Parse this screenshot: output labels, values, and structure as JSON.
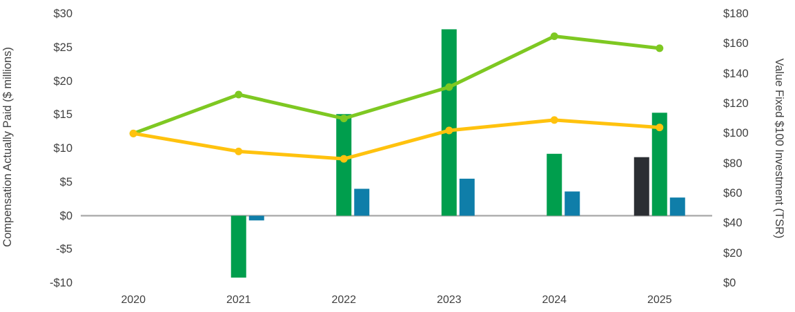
{
  "chart_data": {
    "type": "combo-bar-line",
    "title": "",
    "categories": [
      "2020",
      "2021",
      "2022",
      "2023",
      "2024",
      "2025"
    ],
    "left_axis": {
      "title": "Compensation Actually Paid ($ millions)",
      "range": [
        -10,
        30
      ],
      "ticks": [
        {
          "label": "$30",
          "value": 30
        },
        {
          "label": "$25",
          "value": 25
        },
        {
          "label": "$20",
          "value": 20
        },
        {
          "label": "$15",
          "value": 15
        },
        {
          "label": "$10",
          "value": 10
        },
        {
          "label": "$5",
          "value": 5
        },
        {
          "label": "$0",
          "value": 0
        },
        {
          "label": "-$5",
          "value": -5
        },
        {
          "label": "-$10",
          "value": -10
        }
      ]
    },
    "right_axis": {
      "title": "Value Fixed $100 Investment (TSR)",
      "range": [
        0,
        180
      ],
      "ticks": [
        {
          "label": "$180",
          "value": 180
        },
        {
          "label": "$160",
          "value": 160
        },
        {
          "label": "$140",
          "value": 140
        },
        {
          "label": "$120",
          "value": 120
        },
        {
          "label": "$100",
          "value": 100
        },
        {
          "label": "$80",
          "value": 80
        },
        {
          "label": "$60",
          "value": 60
        },
        {
          "label": "$40",
          "value": 40
        },
        {
          "label": "$20",
          "value": 20
        },
        {
          "label": "$0",
          "value": 0
        }
      ]
    },
    "bar_series": [
      {
        "name": "black-bar",
        "axis": "left",
        "color": "#2B2E33",
        "values": [
          null,
          null,
          null,
          null,
          null,
          8.7
        ]
      },
      {
        "name": "green-bar",
        "axis": "left",
        "color": "#009E4D",
        "values": [
          null,
          -9.2,
          15.1,
          27.7,
          9.2,
          15.3
        ]
      },
      {
        "name": "blue-bar",
        "axis": "left",
        "color": "#0F7EA9",
        "values": [
          null,
          -0.7,
          4.0,
          5.5,
          3.6,
          2.7
        ]
      }
    ],
    "line_series": [
      {
        "name": "green-line",
        "axis": "right",
        "color": "#7EC822",
        "values": [
          100,
          126,
          110,
          131,
          165,
          157
        ]
      },
      {
        "name": "yellow-line",
        "axis": "right",
        "color": "#FFC20E",
        "values": [
          100,
          88,
          83,
          102,
          109,
          104
        ]
      }
    ],
    "zero_line_color": "#A6A6A6",
    "text_color": "#404040",
    "grid": false,
    "legend": "none"
  }
}
